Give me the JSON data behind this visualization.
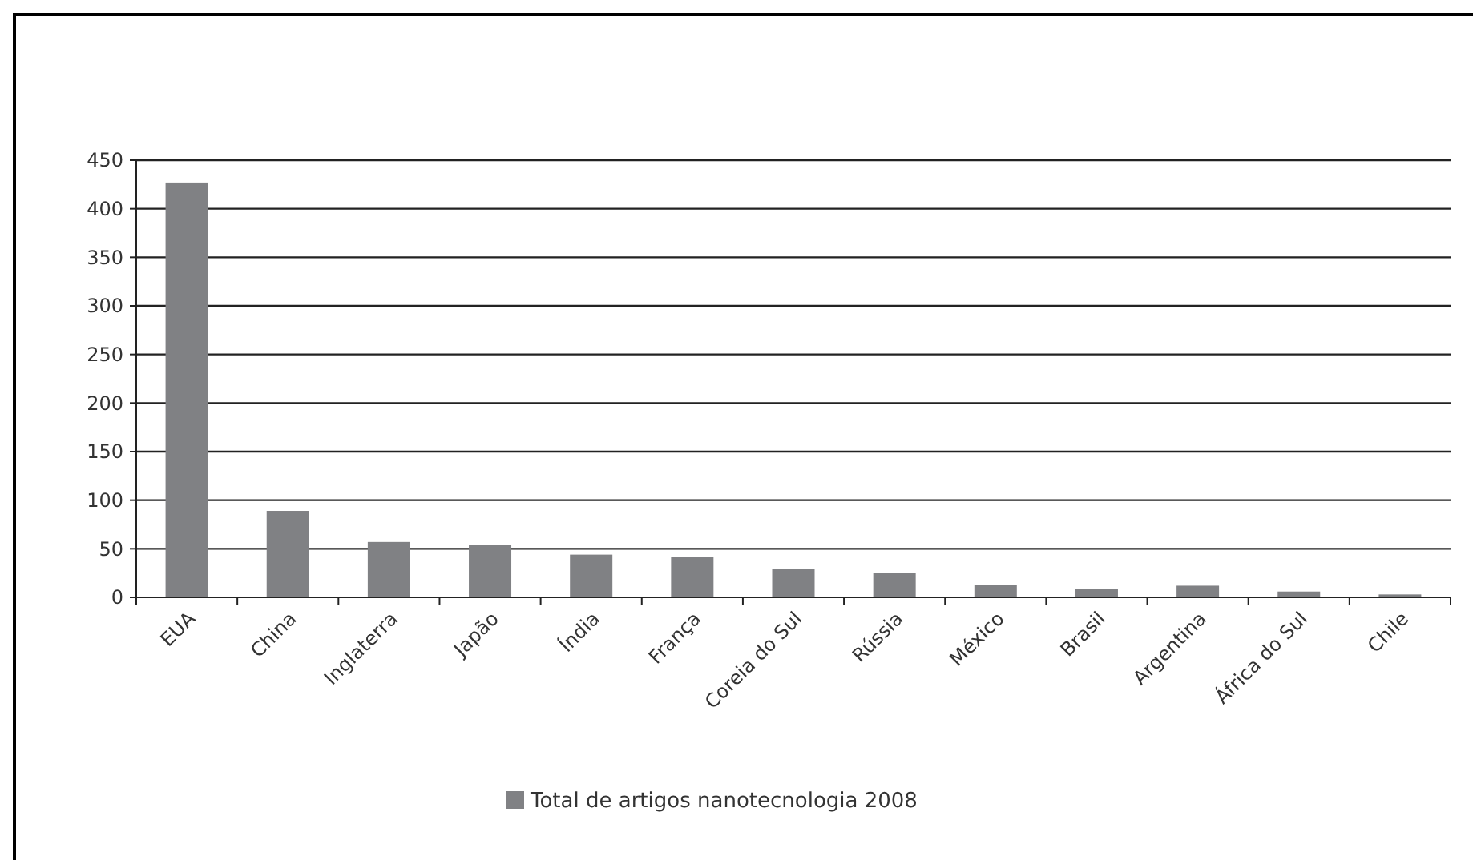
{
  "chart_data": {
    "type": "bar",
    "categories": [
      "EUA",
      "China",
      "Inglaterra",
      "Japão",
      "Índia",
      "França",
      "Coreia do Sul",
      "Rússia",
      "México",
      "Brasil",
      "Argentina",
      "África do Sul",
      "Chile"
    ],
    "series": [
      {
        "name": "Total de artigos nanotecnologia 2008",
        "color": "#808184",
        "values": [
          427,
          89,
          57,
          54,
          44,
          42,
          29,
          25,
          13,
          9,
          12,
          6,
          3
        ]
      }
    ],
    "ylim": [
      0,
      450
    ],
    "yticks": [
      0,
      50,
      100,
      150,
      200,
      250,
      300,
      350,
      400,
      450
    ],
    "grid": "y",
    "legend": "bottom"
  }
}
